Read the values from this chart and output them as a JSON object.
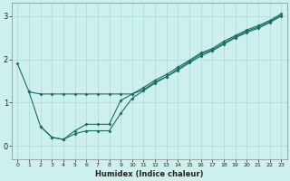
{
  "xlabel": "Humidex (Indice chaleur)",
  "bg_color": "#cef0ec",
  "line_color": "#1a6e66",
  "grid_color": "#aaddd8",
  "xlim": [
    -0.5,
    23.5
  ],
  "ylim": [
    -0.3,
    3.3
  ],
  "xticks": [
    0,
    1,
    2,
    3,
    4,
    5,
    6,
    7,
    8,
    9,
    10,
    11,
    12,
    13,
    14,
    15,
    16,
    17,
    18,
    19,
    20,
    21,
    22,
    23
  ],
  "yticks": [
    0,
    1,
    2,
    3
  ],
  "line1_x": [
    0,
    1,
    2,
    3,
    4,
    5,
    6,
    7,
    8,
    9,
    10,
    11,
    12,
    13,
    14,
    15,
    16,
    17,
    18,
    19,
    20,
    21,
    22,
    23
  ],
  "line1_y": [
    1.9,
    1.25,
    1.2,
    1.2,
    1.2,
    1.2,
    1.2,
    1.2,
    1.2,
    1.2,
    1.2,
    1.3,
    1.48,
    1.6,
    1.75,
    1.92,
    2.08,
    2.2,
    2.35,
    2.5,
    2.62,
    2.72,
    2.85,
    3.0
  ],
  "line2_x": [
    1,
    2,
    3,
    4,
    5,
    6,
    7,
    8,
    9,
    10,
    11,
    12,
    13,
    14,
    15,
    16,
    17,
    18,
    19,
    20,
    21,
    22,
    23
  ],
  "line2_y": [
    1.25,
    0.45,
    0.2,
    0.15,
    0.28,
    0.35,
    0.35,
    0.35,
    0.75,
    1.1,
    1.28,
    1.45,
    1.6,
    1.78,
    1.95,
    2.12,
    2.22,
    2.38,
    2.52,
    2.65,
    2.75,
    2.87,
    3.02
  ],
  "line3_x": [
    2,
    3,
    4,
    5,
    6,
    7,
    8,
    9,
    10,
    11,
    12,
    13,
    14,
    15,
    16,
    17,
    18,
    19,
    20,
    21,
    22,
    23
  ],
  "line3_y": [
    0.45,
    0.2,
    0.15,
    0.35,
    0.5,
    0.5,
    0.5,
    1.05,
    1.2,
    1.35,
    1.52,
    1.65,
    1.82,
    1.98,
    2.15,
    2.25,
    2.42,
    2.55,
    2.68,
    2.78,
    2.9,
    3.05
  ]
}
